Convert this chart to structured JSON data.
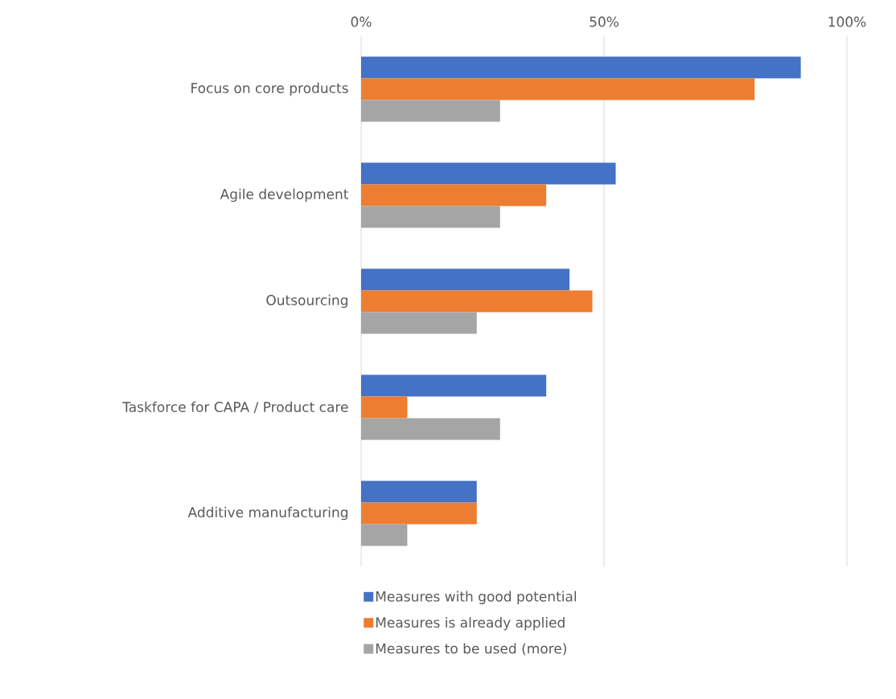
{
  "chart_data": {
    "type": "bar",
    "orientation": "horizontal",
    "categories": [
      "Focus on core products",
      "Agile development",
      "Outsourcing",
      "Taskforce for CAPA / Product care",
      "Additive manufacturing"
    ],
    "series": [
      {
        "name": "Measures with good potential",
        "color": "#4472c4",
        "values": [
          90.5,
          52.4,
          42.9,
          38.1,
          23.8
        ]
      },
      {
        "name": "Measures is already applied",
        "color": "#ed7d31",
        "values": [
          81.0,
          38.1,
          47.6,
          9.5,
          23.8
        ]
      },
      {
        "name": "Measures to be used (more)",
        "color": "#a5a5a5",
        "values": [
          28.6,
          28.6,
          23.8,
          28.6,
          9.5
        ]
      }
    ],
    "xlim": [
      0,
      100
    ],
    "xticks": [
      {
        "value": 0,
        "label": "0%"
      },
      {
        "value": 50,
        "label": "50%"
      },
      {
        "value": 100,
        "label": "100%"
      }
    ],
    "grid": "x",
    "legend": "bottom"
  }
}
